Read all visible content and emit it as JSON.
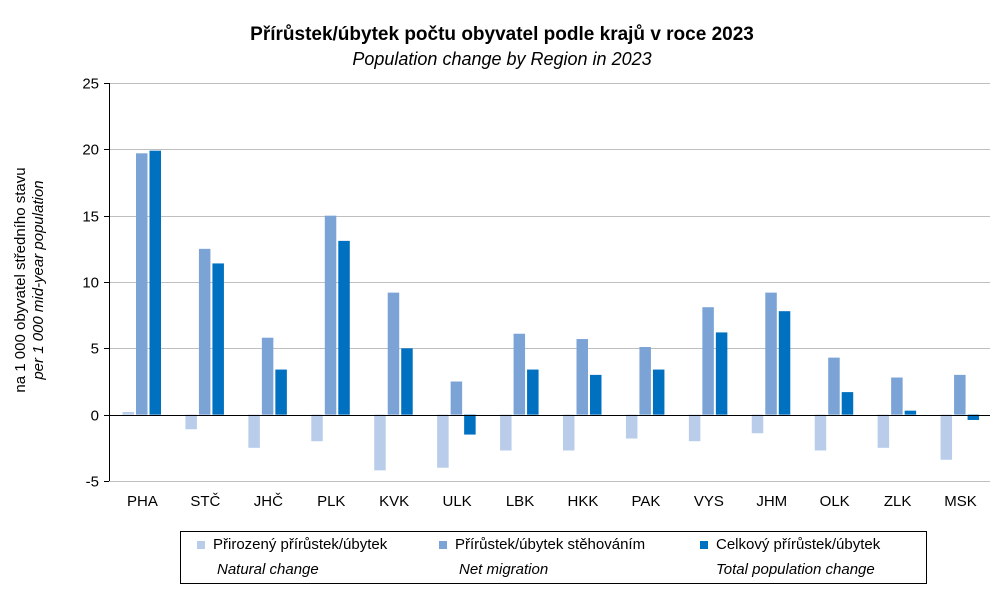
{
  "chart_data": {
    "type": "bar",
    "title": "Přírůstek/úbytek počtu obyvatel podle krajů v roce 2023",
    "subtitle": "Population change by Region in 2023",
    "ylabel": "na 1 000 obyvatel středního stavu",
    "ylabel_en": "per 1 000 mid-year population",
    "ylim": [
      -5,
      25
    ],
    "yticks": [
      -5,
      0,
      5,
      10,
      15,
      20,
      25
    ],
    "grid": true,
    "legend_position": "bottom",
    "categories": [
      "PHA",
      "STČ",
      "JHČ",
      "PLK",
      "KVK",
      "ULK",
      "LBK",
      "HKK",
      "PAK",
      "VYS",
      "JHM",
      "OLK",
      "ZLK",
      "MSK"
    ],
    "series": [
      {
        "name": "Přirozený přírůstek/úbytek",
        "name_en": "Natural change",
        "color": "#b9cdeb",
        "values": [
          0.2,
          -1.1,
          -2.5,
          -2.0,
          -4.2,
          -4.0,
          -2.7,
          -2.7,
          -1.8,
          -2.0,
          -1.4,
          -2.7,
          -2.5,
          -3.4
        ]
      },
      {
        "name": "Přírůstek/úbytek stěhováním",
        "name_en": "Net migration",
        "color": "#7ba3d6",
        "values": [
          19.7,
          12.5,
          5.8,
          15.0,
          9.2,
          2.5,
          6.1,
          5.7,
          5.1,
          8.1,
          9.2,
          4.3,
          2.8,
          3.0
        ]
      },
      {
        "name": "Celkový přírůstek/úbytek",
        "name_en": "Total population change",
        "color": "#0070c0",
        "values": [
          19.9,
          11.4,
          3.4,
          13.1,
          5.0,
          -1.5,
          3.4,
          3.0,
          3.4,
          6.2,
          7.8,
          1.7,
          0.3,
          -0.4
        ]
      }
    ]
  }
}
